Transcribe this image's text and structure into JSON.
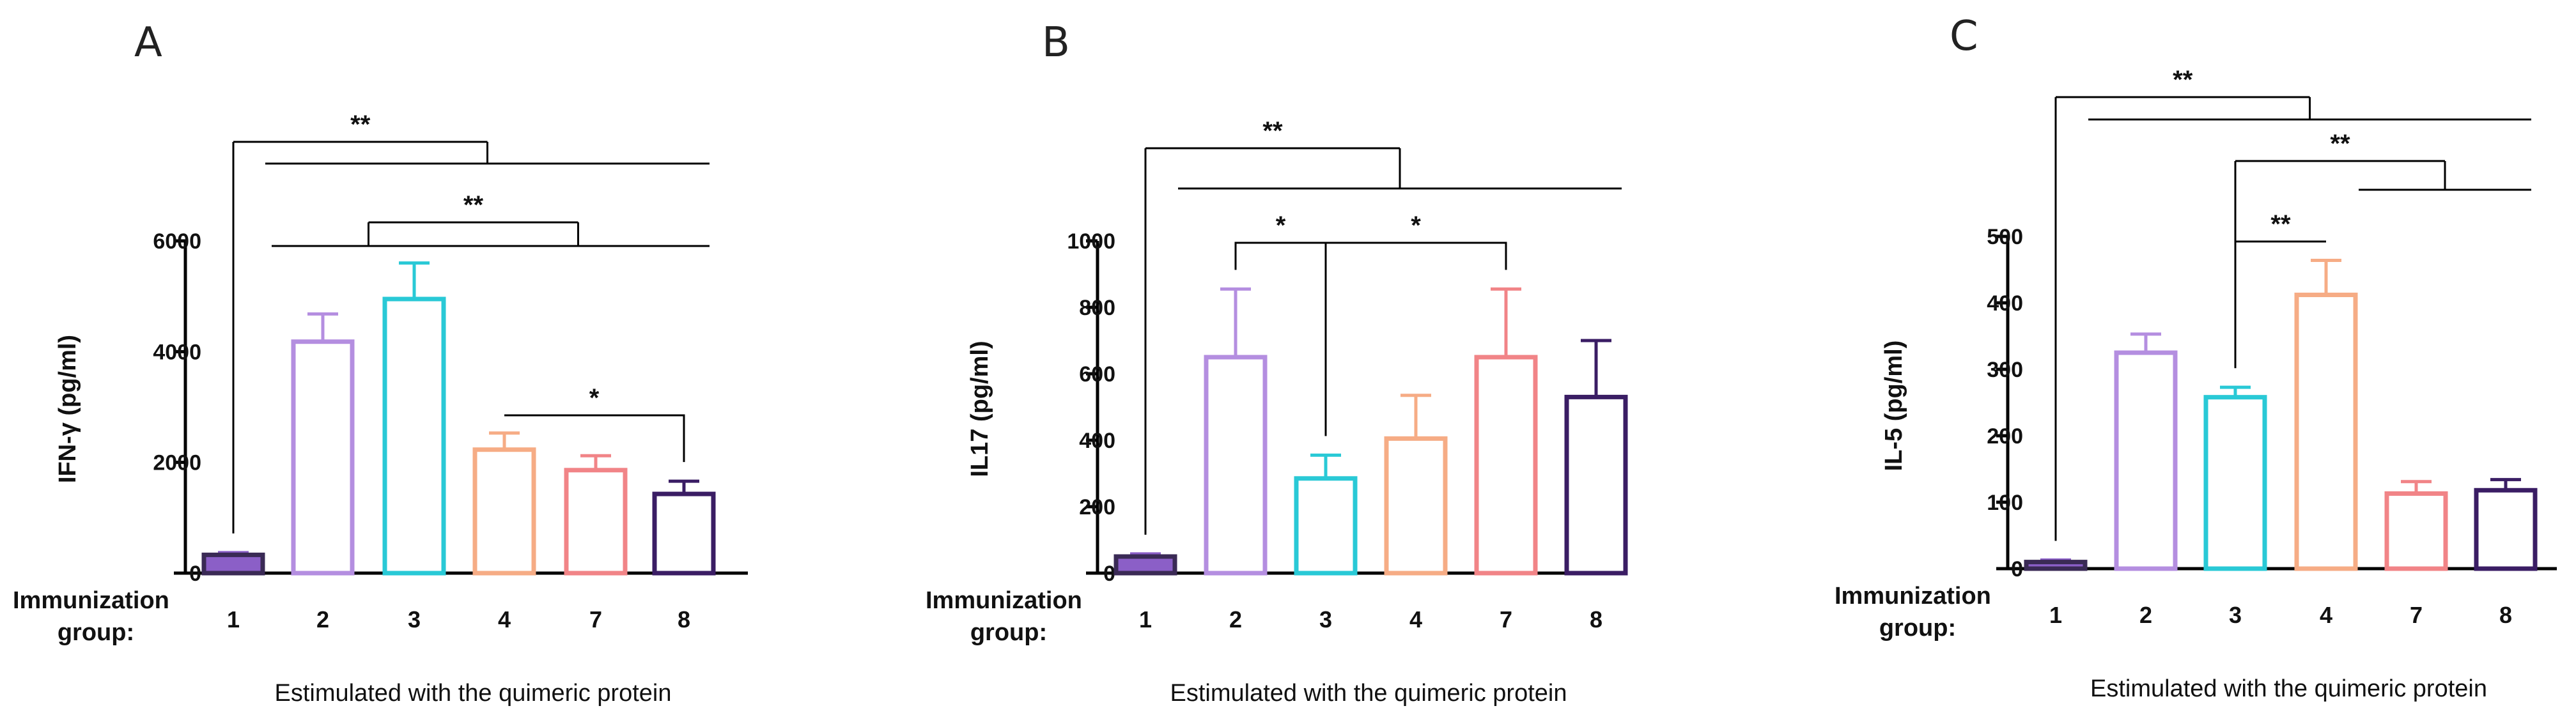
{
  "figure_xtitle": "Estimulated with the quimeric protein",
  "group_label_line1": "Immunization",
  "group_label_line2": "group:",
  "chart_data": [
    {
      "panel": "A",
      "type": "bar",
      "title": "A",
      "ylabel": "IFN-γ (pg/ml)",
      "xlabel": "Estimulated with the quimeric protein",
      "categories": [
        "1",
        "2",
        "3",
        "4",
        "7",
        "8"
      ],
      "values": [
        330,
        4180,
        4950,
        2230,
        1860,
        1430
      ],
      "errors": [
        40,
        500,
        650,
        300,
        260,
        230
      ],
      "colors": [
        "#8B5FC7",
        "#B48EE0",
        "#29C9D6",
        "#F6AC85",
        "#F18487",
        "#3A1D64"
      ],
      "filled": [
        true,
        false,
        false,
        false,
        false,
        false
      ],
      "ylim": [
        0,
        6000
      ],
      "yticks": [
        0,
        2000,
        4000,
        6000
      ],
      "significance": [
        {
          "label": "**",
          "from": [
            "1"
          ],
          "to": [
            "2",
            "3",
            "4",
            "7",
            "8"
          ]
        },
        {
          "label": "**",
          "from": [
            "2",
            "3"
          ],
          "to": [
            "4",
            "7",
            "8"
          ]
        },
        {
          "label": "*",
          "from": [
            "4"
          ],
          "to": [
            "8"
          ]
        }
      ]
    },
    {
      "panel": "B",
      "type": "bar",
      "title": "B",
      "ylabel": "IL17 (pg/ml)",
      "xlabel": "Estimulated with the quimeric protein",
      "categories": [
        "1",
        "2",
        "3",
        "4",
        "7",
        "8"
      ],
      "values": [
        50,
        650,
        285,
        405,
        650,
        530
      ],
      "errors": [
        8,
        205,
        70,
        130,
        205,
        170
      ],
      "colors": [
        "#8B5FC7",
        "#B48EE0",
        "#29C9D6",
        "#F6AC85",
        "#F18487",
        "#3A1D64"
      ],
      "filled": [
        true,
        false,
        false,
        false,
        false,
        false
      ],
      "ylim": [
        0,
        1000
      ],
      "yticks": [
        0,
        200,
        400,
        600,
        800,
        1000
      ],
      "significance": [
        {
          "label": "**",
          "from": [
            "1"
          ],
          "to": [
            "2",
            "3",
            "4",
            "7",
            "8"
          ]
        },
        {
          "label": "*",
          "from": [
            "2"
          ],
          "to": [
            "3"
          ]
        },
        {
          "label": "*",
          "from": [
            "3"
          ],
          "to": [
            "7"
          ]
        }
      ]
    },
    {
      "panel": "C",
      "type": "bar",
      "title": "C",
      "ylabel": "IL-5 (pg/ml)",
      "xlabel": "Estimulated with the quimeric protein",
      "categories": [
        "1",
        "2",
        "3",
        "4",
        "7",
        "8"
      ],
      "values": [
        10,
        325,
        258,
        412,
        113,
        118
      ],
      "errors": [
        3,
        28,
        15,
        52,
        18,
        16
      ],
      "colors": [
        "#8B5FC7",
        "#B48EE0",
        "#29C9D6",
        "#F6AC85",
        "#F18487",
        "#3A1D64"
      ],
      "filled": [
        true,
        false,
        false,
        false,
        false,
        false
      ],
      "ylim": [
        0,
        500
      ],
      "yticks": [
        0,
        100,
        200,
        300,
        400,
        500
      ],
      "significance": [
        {
          "label": "**",
          "from": [
            "1"
          ],
          "to": [
            "2",
            "3",
            "4",
            "7",
            "8"
          ]
        },
        {
          "label": "**",
          "from": [
            "3"
          ],
          "to": [
            "7",
            "8"
          ]
        },
        {
          "label": "**",
          "from": [
            "3"
          ],
          "to": [
            "4"
          ]
        }
      ]
    }
  ]
}
